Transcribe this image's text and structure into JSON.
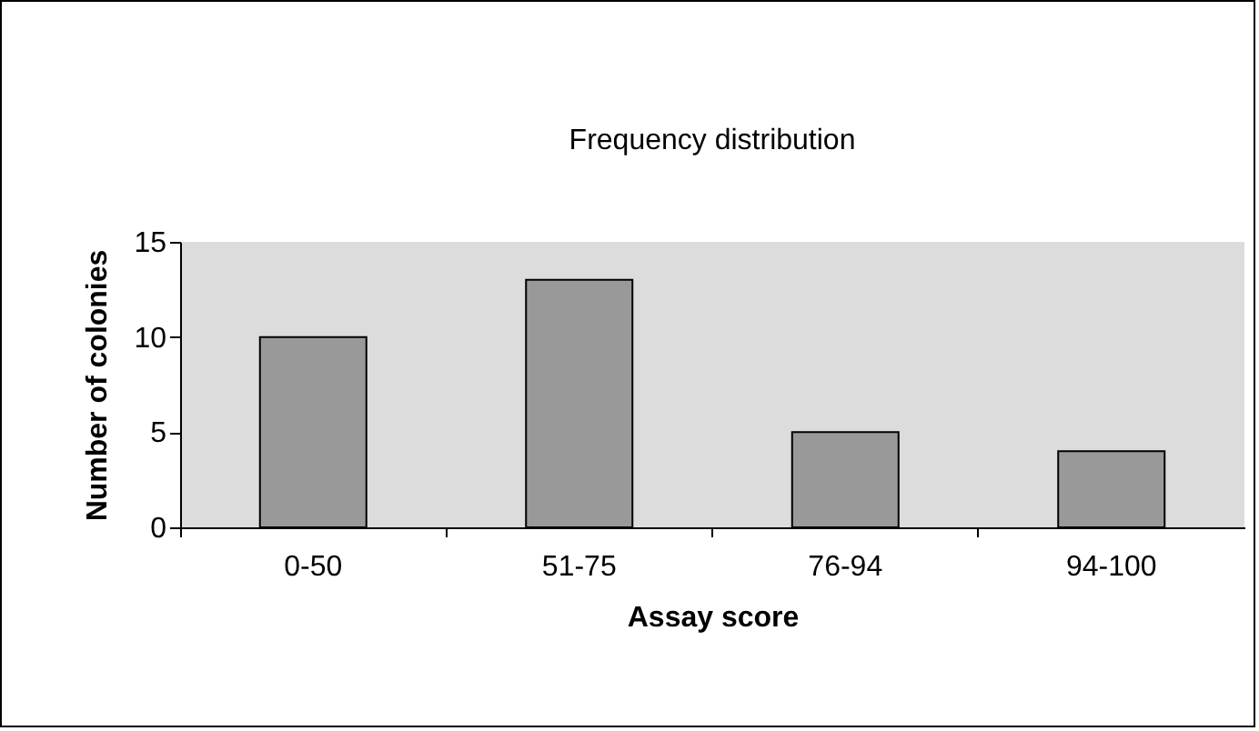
{
  "chart_data": {
    "type": "bar",
    "title": "Frequency distribution",
    "xlabel": "Assay score",
    "ylabel": "Number of colonies",
    "categories": [
      "0-50",
      "51-75",
      "76-94",
      "94-100"
    ],
    "values": [
      10,
      13,
      5,
      4
    ],
    "color": "#999999",
    "ylim": [
      0,
      15
    ],
    "yticks": [
      0,
      5,
      10,
      15
    ],
    "grid": false
  }
}
